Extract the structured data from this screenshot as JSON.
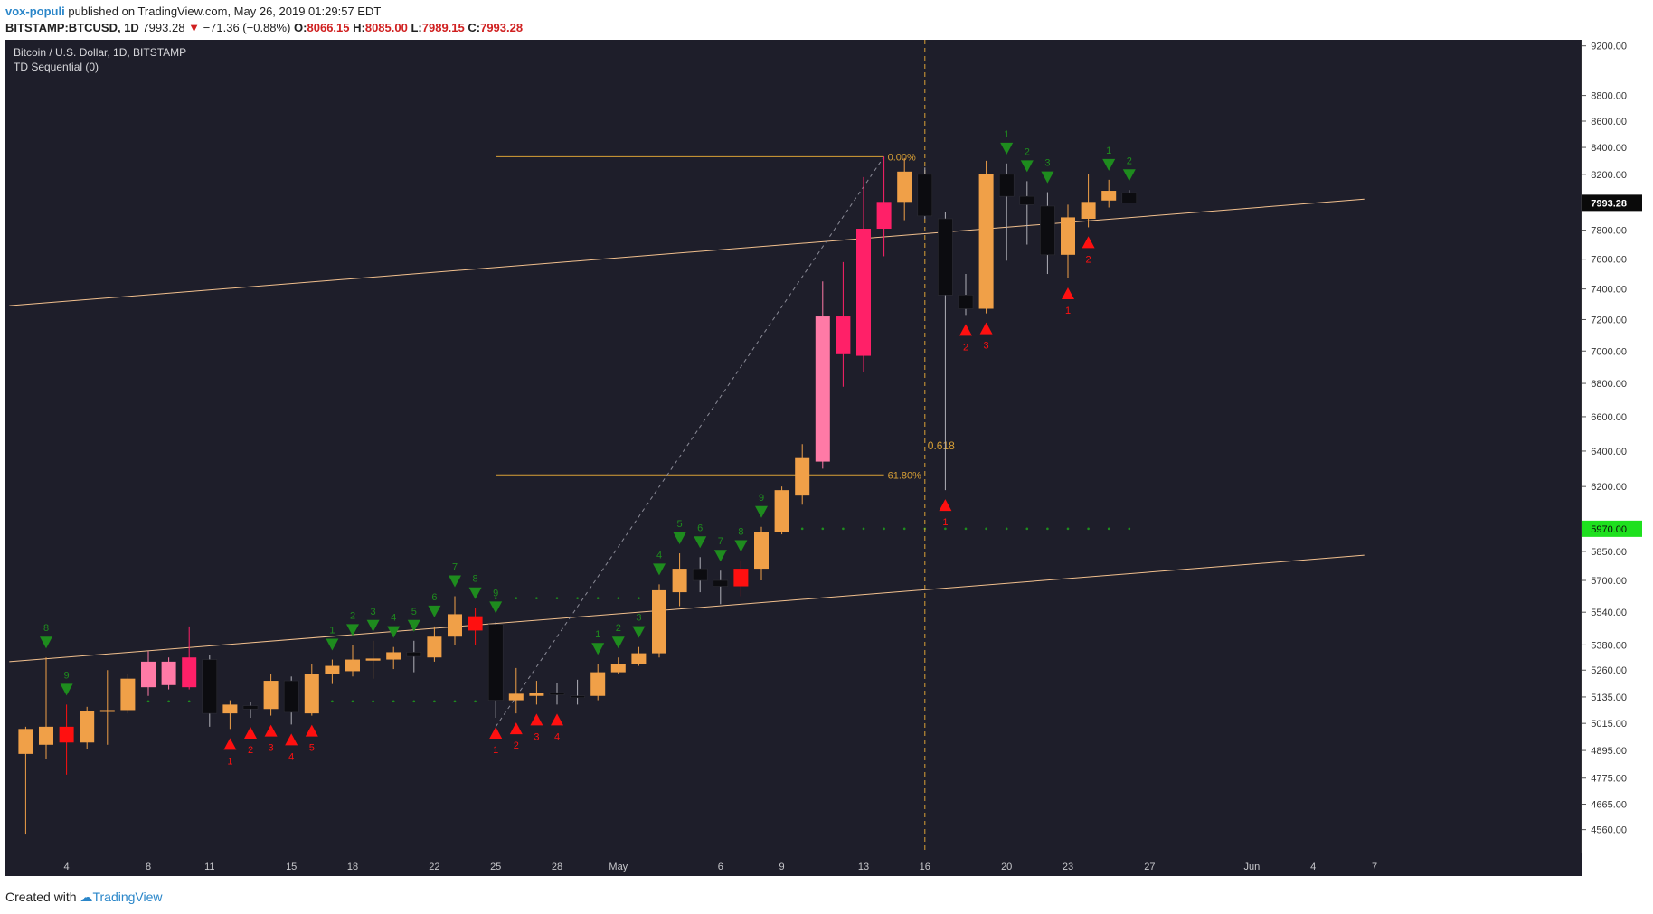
{
  "header": {
    "author": "vox-populi",
    "published_text": "published on TradingView.com, May 26, 2019 01:29:57 EDT",
    "symbol": "BITSTAMP:BTCUSD, 1D",
    "last": "7993.28",
    "change": "−71.36 (−0.88%)",
    "o_label": "O:",
    "o_value": "8066.15",
    "h_label": "H:",
    "h_value": "8085.00",
    "l_label": "L:",
    "l_value": "7989.15",
    "c_label": "C:",
    "c_value": "7993.28"
  },
  "legend": {
    "title": "Bitcoin / U.S. Dollar, 1D, BITSTAMP",
    "indicator": "TD Sequential (0)"
  },
  "footer": {
    "created_with": "Created with",
    "brand": "TradingView"
  },
  "colors": {
    "background": "#1e1e2a",
    "up": "#f0a048",
    "down_dark": "#0c0c10",
    "pink": "#ff7aa6",
    "magenta": "#ff2068",
    "red": "#ff1010",
    "green_arrow": "#1e8c1e",
    "red_arrow": "#ff1010",
    "trendline": "#f2c08e",
    "fib": "#d9a036",
    "live_price": "#0a0a0a",
    "marker_price": "#1ee01e"
  },
  "chart_data": {
    "type": "candlestick",
    "title": "Bitcoin / U.S. Dollar, 1D, BITSTAMP",
    "price_scale": "log",
    "y_range": [
      4500,
      9250
    ],
    "y_tick_labels": [
      "9200.00",
      "8800.00",
      "8600.00",
      "8400.00",
      "8200.00",
      "7800.00",
      "7600.00",
      "7400.00",
      "7200.00",
      "7000.00",
      "6800.00",
      "6600.00",
      "6400.00",
      "6200.00",
      "5850.00",
      "5700.00",
      "5540.00",
      "5380.00",
      "5260.00",
      "5135.00",
      "5015.00",
      "4895.00",
      "4775.00",
      "4665.00",
      "4560.00"
    ],
    "x_tick_labels": [
      {
        "day": 1,
        "label": "4"
      },
      {
        "day": 5,
        "label": "8"
      },
      {
        "day": 8,
        "label": "11"
      },
      {
        "day": 12,
        "label": "15"
      },
      {
        "day": 15,
        "label": "18"
      },
      {
        "day": 19,
        "label": "22"
      },
      {
        "day": 22,
        "label": "25"
      },
      {
        "day": 25,
        "label": "28"
      },
      {
        "day": 28,
        "label": "May"
      },
      {
        "day": 33,
        "label": "6"
      },
      {
        "day": 36,
        "label": "9"
      },
      {
        "day": 40,
        "label": "13"
      },
      {
        "day": 43,
        "label": "16"
      },
      {
        "day": 47,
        "label": "20"
      },
      {
        "day": 50,
        "label": "23"
      },
      {
        "day": 54,
        "label": "27"
      },
      {
        "day": 59,
        "label": "Jun"
      },
      {
        "day": 62,
        "label": "4"
      },
      {
        "day": 65,
        "label": "7"
      }
    ],
    "candles": [
      {
        "d": -1,
        "o": 4880,
        "h": 5000,
        "l": 4540,
        "c": 4990,
        "col": "up"
      },
      {
        "d": 0,
        "o": 4920,
        "h": 5320,
        "l": 4860,
        "c": 5000,
        "col": "up"
      },
      {
        "d": 1,
        "o": 5000,
        "h": 5100,
        "l": 4790,
        "c": 4930,
        "col": "red"
      },
      {
        "d": 2,
        "o": 4930,
        "h": 5090,
        "l": 4900,
        "c": 5070,
        "col": "up"
      },
      {
        "d": 3,
        "o": 5070,
        "h": 5260,
        "l": 4920,
        "c": 5075,
        "col": "up"
      },
      {
        "d": 4,
        "o": 5075,
        "h": 5240,
        "l": 5060,
        "c": 5220,
        "col": "up"
      },
      {
        "d": 5,
        "o": 5180,
        "h": 5350,
        "l": 5140,
        "c": 5300,
        "col": "pink"
      },
      {
        "d": 6,
        "o": 5300,
        "h": 5320,
        "l": 5170,
        "c": 5190,
        "col": "pink"
      },
      {
        "d": 7,
        "o": 5180,
        "h": 5470,
        "l": 5170,
        "c": 5320,
        "col": "magenta"
      },
      {
        "d": 8,
        "o": 5310,
        "h": 5330,
        "l": 5000,
        "c": 5060,
        "col": "dark"
      },
      {
        "d": 9,
        "o": 5060,
        "h": 5120,
        "l": 4990,
        "c": 5100,
        "col": "up"
      },
      {
        "d": 10,
        "o": 5095,
        "h": 5110,
        "l": 5040,
        "c": 5080,
        "col": "dark"
      },
      {
        "d": 11,
        "o": 5080,
        "h": 5240,
        "l": 5050,
        "c": 5210,
        "col": "up"
      },
      {
        "d": 12,
        "o": 5210,
        "h": 5230,
        "l": 5010,
        "c": 5065,
        "col": "dark"
      },
      {
        "d": 13,
        "o": 5060,
        "h": 5290,
        "l": 5050,
        "c": 5240,
        "col": "up"
      },
      {
        "d": 14,
        "o": 5240,
        "h": 5310,
        "l": 5195,
        "c": 5280,
        "col": "up"
      },
      {
        "d": 15,
        "o": 5255,
        "h": 5380,
        "l": 5230,
        "c": 5310,
        "col": "up"
      },
      {
        "d": 16,
        "o": 5305,
        "h": 5400,
        "l": 5220,
        "c": 5315,
        "col": "up"
      },
      {
        "d": 17,
        "o": 5310,
        "h": 5370,
        "l": 5265,
        "c": 5345,
        "col": "up"
      },
      {
        "d": 18,
        "o": 5345,
        "h": 5400,
        "l": 5250,
        "c": 5325,
        "col": "dark"
      },
      {
        "d": 19,
        "o": 5320,
        "h": 5470,
        "l": 5300,
        "c": 5420,
        "col": "up"
      },
      {
        "d": 20,
        "o": 5420,
        "h": 5620,
        "l": 5380,
        "c": 5530,
        "col": "up"
      },
      {
        "d": 21,
        "o": 5520,
        "h": 5560,
        "l": 5380,
        "c": 5450,
        "col": "red"
      },
      {
        "d": 22,
        "o": 5480,
        "h": 5490,
        "l": 5040,
        "c": 5120,
        "col": "dark"
      },
      {
        "d": 23,
        "o": 5120,
        "h": 5270,
        "l": 5060,
        "c": 5150,
        "col": "up"
      },
      {
        "d": 24,
        "o": 5140,
        "h": 5210,
        "l": 5100,
        "c": 5155,
        "col": "up"
      },
      {
        "d": 25,
        "o": 5155,
        "h": 5200,
        "l": 5100,
        "c": 5145,
        "col": "dark"
      },
      {
        "d": 26,
        "o": 5140,
        "h": 5215,
        "l": 5100,
        "c": 5140,
        "col": "dark"
      },
      {
        "d": 27,
        "o": 5140,
        "h": 5290,
        "l": 5120,
        "c": 5250,
        "col": "up"
      },
      {
        "d": 28,
        "o": 5250,
        "h": 5320,
        "l": 5240,
        "c": 5290,
        "col": "up"
      },
      {
        "d": 29,
        "o": 5290,
        "h": 5370,
        "l": 5280,
        "c": 5340,
        "col": "up"
      },
      {
        "d": 30,
        "o": 5340,
        "h": 5680,
        "l": 5320,
        "c": 5650,
        "col": "up"
      },
      {
        "d": 31,
        "o": 5640,
        "h": 5840,
        "l": 5570,
        "c": 5760,
        "col": "up"
      },
      {
        "d": 32,
        "o": 5760,
        "h": 5820,
        "l": 5640,
        "c": 5700,
        "col": "dark"
      },
      {
        "d": 33,
        "o": 5700,
        "h": 5750,
        "l": 5580,
        "c": 5670,
        "col": "dark"
      },
      {
        "d": 34,
        "o": 5670,
        "h": 5800,
        "l": 5620,
        "c": 5760,
        "col": "red"
      },
      {
        "d": 35,
        "o": 5760,
        "h": 5980,
        "l": 5700,
        "c": 5950,
        "col": "up"
      },
      {
        "d": 36,
        "o": 5950,
        "h": 6200,
        "l": 5940,
        "c": 6180,
        "col": "up"
      },
      {
        "d": 37,
        "o": 6150,
        "h": 6440,
        "l": 6100,
        "c": 6360,
        "col": "up"
      },
      {
        "d": 38,
        "o": 6340,
        "h": 7450,
        "l": 6300,
        "c": 7220,
        "col": "pink"
      },
      {
        "d": 39,
        "o": 7220,
        "h": 7580,
        "l": 6780,
        "c": 6980,
        "col": "magenta"
      },
      {
        "d": 40,
        "o": 6970,
        "h": 8180,
        "l": 6870,
        "c": 7810,
        "col": "magenta"
      },
      {
        "d": 41,
        "o": 7810,
        "h": 8330,
        "l": 7620,
        "c": 8000,
        "col": "magenta"
      },
      {
        "d": 42,
        "o": 8000,
        "h": 8320,
        "l": 7870,
        "c": 8220,
        "col": "up"
      },
      {
        "d": 43,
        "o": 8200,
        "h": 8250,
        "l": 7880,
        "c": 7900,
        "col": "dark"
      },
      {
        "d": 44,
        "o": 7880,
        "h": 7930,
        "l": 6180,
        "c": 7360,
        "col": "dark"
      },
      {
        "d": 45,
        "o": 7360,
        "h": 7500,
        "l": 7230,
        "c": 7270,
        "col": "dark"
      },
      {
        "d": 46,
        "o": 7270,
        "h": 8300,
        "l": 7240,
        "c": 8200,
        "col": "up"
      },
      {
        "d": 47,
        "o": 8200,
        "h": 8280,
        "l": 7590,
        "c": 8040,
        "col": "dark"
      },
      {
        "d": 48,
        "o": 8040,
        "h": 8150,
        "l": 7700,
        "c": 7980,
        "col": "dark"
      },
      {
        "d": 49,
        "o": 7970,
        "h": 8070,
        "l": 7500,
        "c": 7630,
        "col": "dark"
      },
      {
        "d": 50,
        "o": 7630,
        "h": 7980,
        "l": 7470,
        "c": 7890,
        "col": "up"
      },
      {
        "d": 51,
        "o": 7880,
        "h": 8200,
        "l": 7820,
        "c": 8000,
        "col": "up"
      },
      {
        "d": 52,
        "o": 8010,
        "h": 8160,
        "l": 7960,
        "c": 8080,
        "col": "up"
      },
      {
        "d": 53,
        "o": 8066.15,
        "h": 8085,
        "l": 7989.15,
        "c": 7993.28,
        "col": "dark"
      }
    ],
    "td_sell_counts": [
      {
        "d": 0,
        "n": "8"
      },
      {
        "d": 1,
        "n": "9"
      },
      {
        "d": 14,
        "n": "1"
      },
      {
        "d": 15,
        "n": "2"
      },
      {
        "d": 16,
        "n": "3"
      },
      {
        "d": 17,
        "n": "4"
      },
      {
        "d": 18,
        "n": "5"
      },
      {
        "d": 19,
        "n": "6"
      },
      {
        "d": 20,
        "n": "7"
      },
      {
        "d": 21,
        "n": "8"
      },
      {
        "d": 22,
        "n": "9"
      },
      {
        "d": 27,
        "n": "1"
      },
      {
        "d": 28,
        "n": "2"
      },
      {
        "d": 29,
        "n": "3"
      },
      {
        "d": 30,
        "n": "4"
      },
      {
        "d": 31,
        "n": "5"
      },
      {
        "d": 32,
        "n": "6"
      },
      {
        "d": 33,
        "n": "7"
      },
      {
        "d": 34,
        "n": "8"
      },
      {
        "d": 35,
        "n": "9"
      },
      {
        "d": 47,
        "n": "1"
      },
      {
        "d": 48,
        "n": "2"
      },
      {
        "d": 49,
        "n": "3"
      },
      {
        "d": 52,
        "n": "1"
      },
      {
        "d": 53,
        "n": "2"
      }
    ],
    "td_buy_counts": [
      {
        "d": 9,
        "n": "1"
      },
      {
        "d": 10,
        "n": "2"
      },
      {
        "d": 11,
        "n": "3"
      },
      {
        "d": 12,
        "n": "4"
      },
      {
        "d": 13,
        "n": "5"
      },
      {
        "d": 22,
        "n": "1"
      },
      {
        "d": 23,
        "n": "2"
      },
      {
        "d": 24,
        "n": "3"
      },
      {
        "d": 25,
        "n": "4"
      },
      {
        "d": 44,
        "n": "1"
      },
      {
        "d": 45,
        "n": "2"
      },
      {
        "d": 46,
        "n": "3"
      },
      {
        "d": 50,
        "n": "1"
      },
      {
        "d": 51,
        "n": "2"
      }
    ],
    "support_dots": [
      {
        "from": 4,
        "to": 8,
        "price": 5115
      },
      {
        "from": 14,
        "to": 21,
        "price": 5115
      },
      {
        "from": 22,
        "to": 30,
        "price": 5610
      },
      {
        "from": 37,
        "to": 53,
        "price": 5970
      }
    ],
    "trendlines": [
      {
        "from": {
          "d": -1.8,
          "p": 7290
        },
        "to": {
          "d": 64.5,
          "p": 8020
        }
      },
      {
        "from": {
          "d": -1.8,
          "p": 5300
        },
        "to": {
          "d": 64.5,
          "p": 5830
        }
      }
    ],
    "fibonacci": {
      "levels": [
        {
          "price": 8330,
          "label": "0.00%"
        },
        {
          "price": 6265,
          "label": "61.80%"
        }
      ],
      "from_day": 22,
      "to_day": 41,
      "swing_low": {
        "d": 22,
        "p": 5000
      },
      "swing_high": {
        "d": 41,
        "p": 8330
      }
    },
    "vertical_marker": {
      "day": 43
    },
    "annotation": "0.618",
    "last_price_label": "7993.28",
    "marker_price_label": "5970.00"
  }
}
